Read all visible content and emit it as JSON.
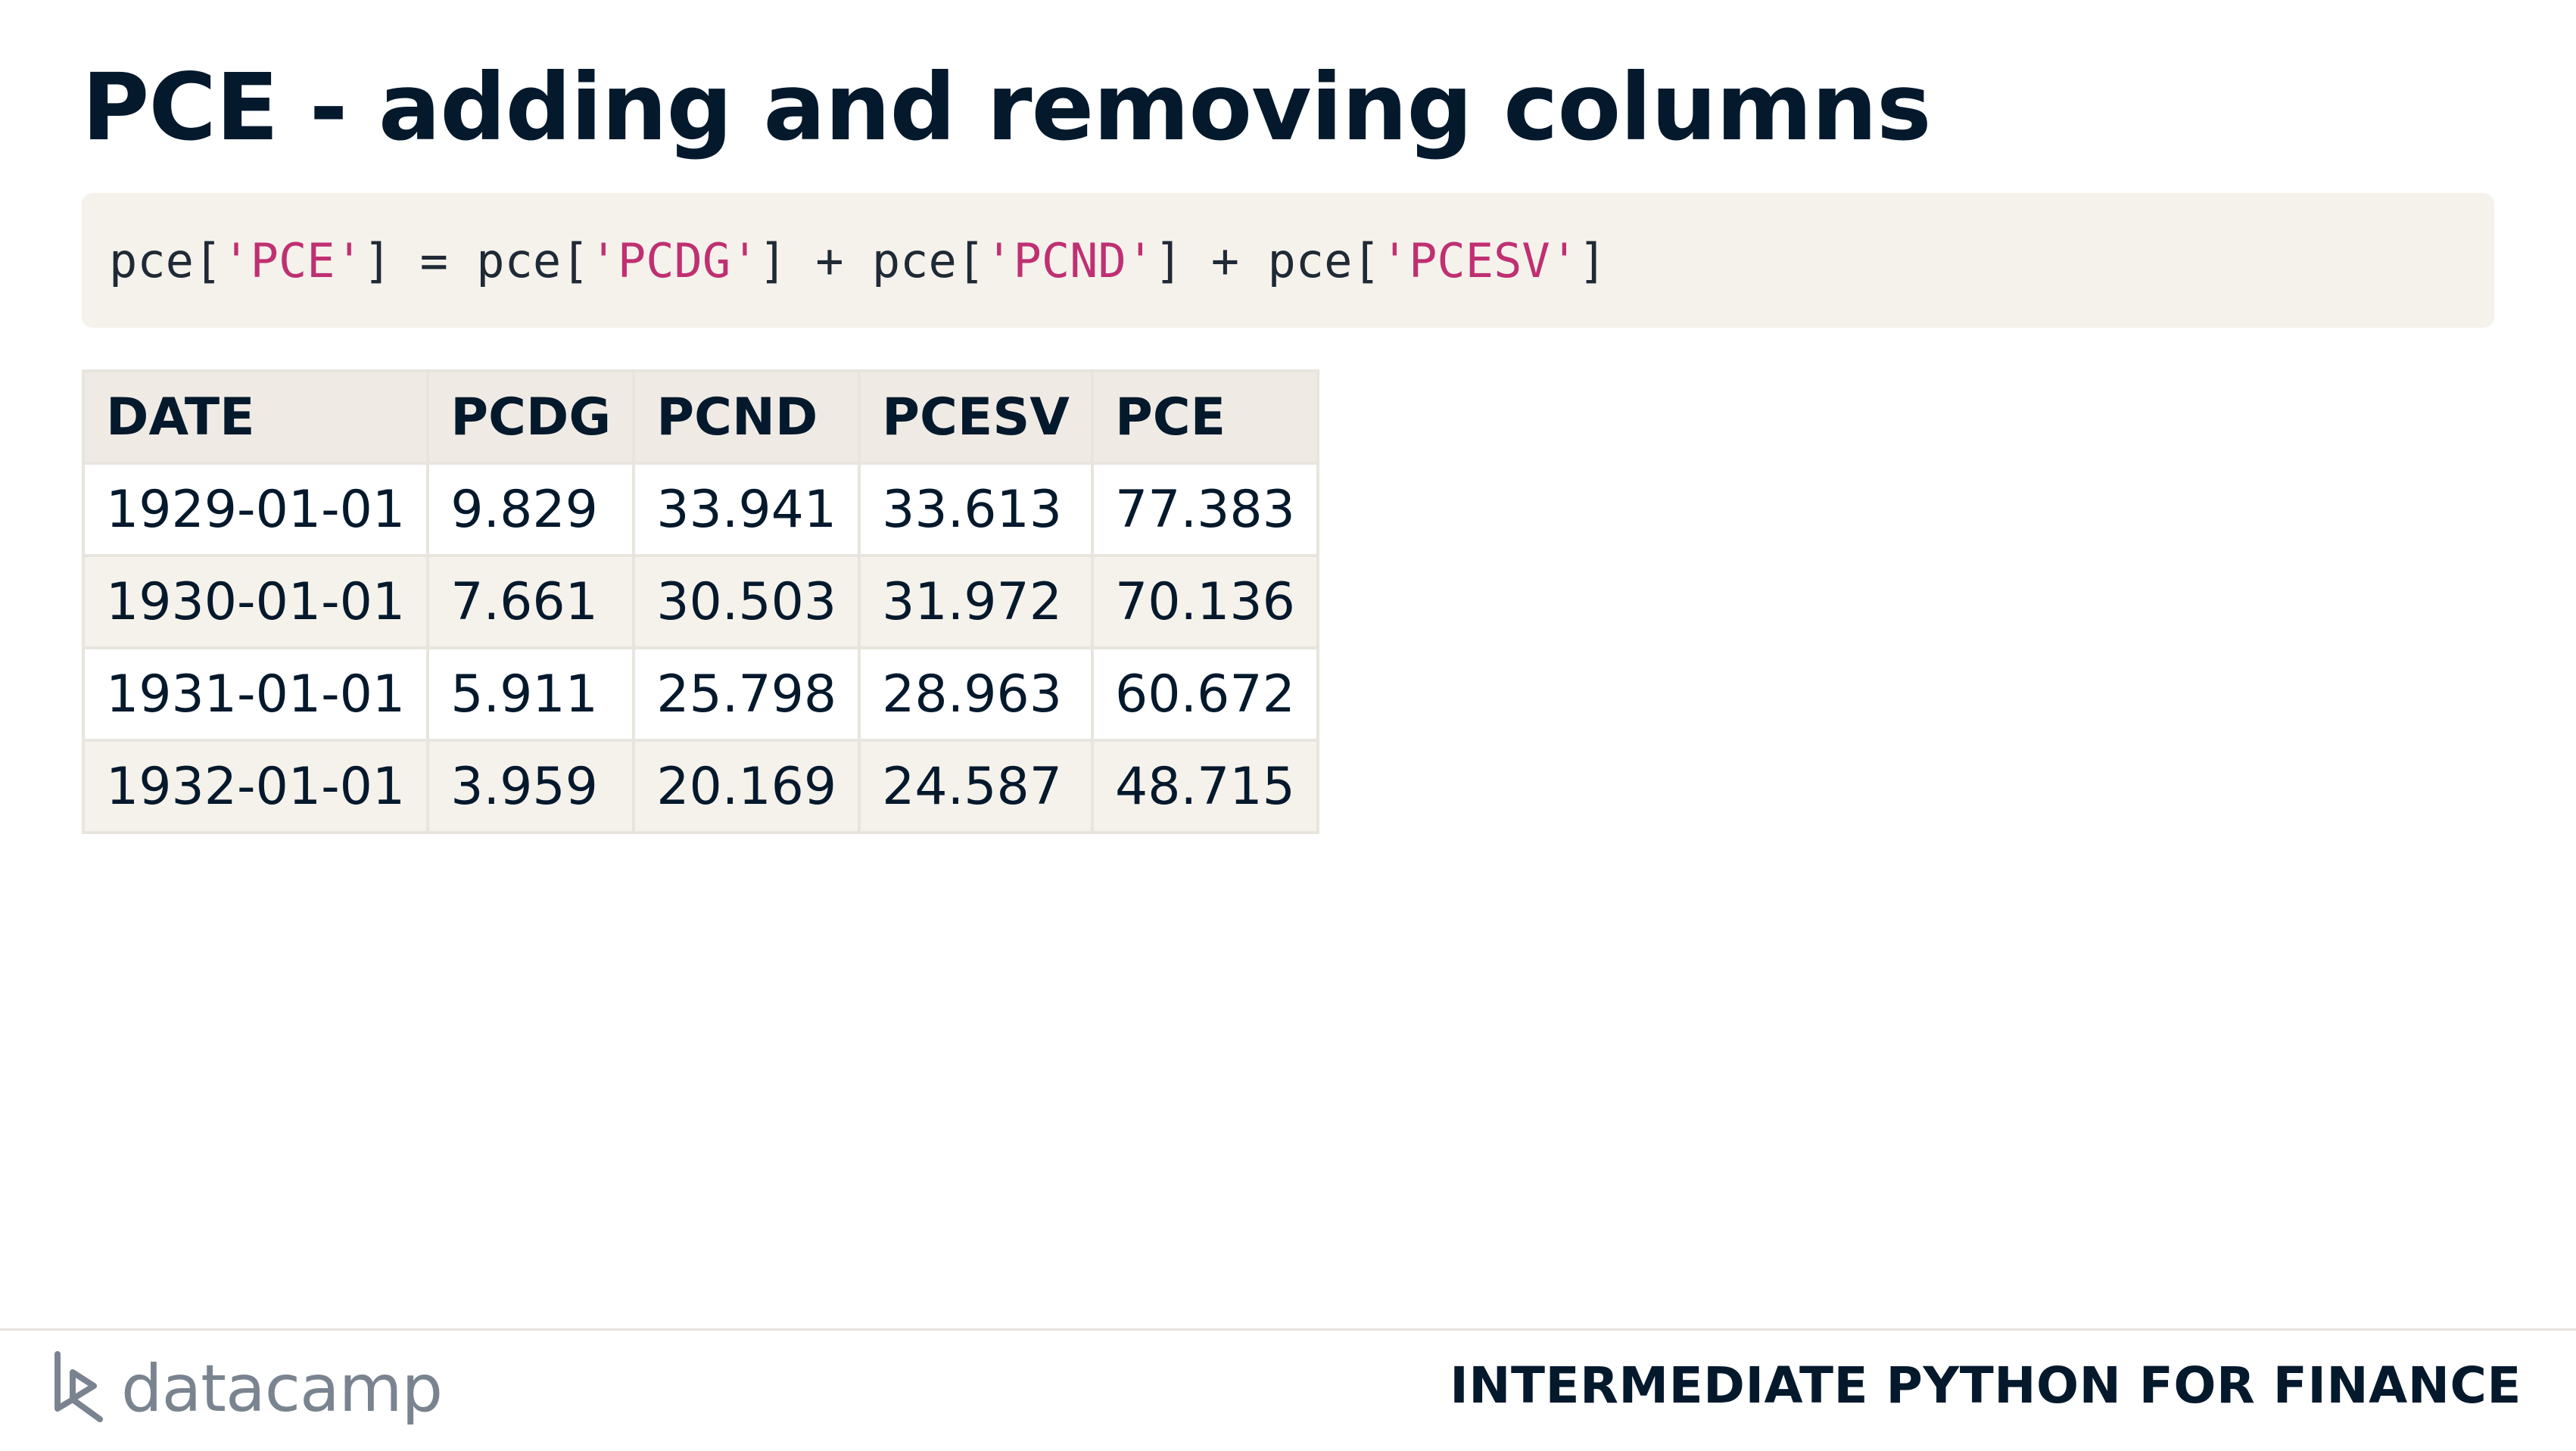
{
  "slide": {
    "title": "PCE - adding and removing columns"
  },
  "code": {
    "tokens": [
      {
        "text": "pce[",
        "type": "plain"
      },
      {
        "text": "'PCE'",
        "type": "str"
      },
      {
        "text": "] = pce[",
        "type": "plain"
      },
      {
        "text": "'PCDG'",
        "type": "str"
      },
      {
        "text": "] + pce[",
        "type": "plain"
      },
      {
        "text": "'PCND'",
        "type": "str"
      },
      {
        "text": "] + pce[",
        "type": "plain"
      },
      {
        "text": "'PCESV'",
        "type": "str"
      },
      {
        "text": "]",
        "type": "plain"
      }
    ],
    "string_color": "#bf3072",
    "background_color": "#f5f2eb"
  },
  "table": {
    "headers": [
      "DATE",
      "PCDG",
      "PCND",
      "PCESV",
      "PCE"
    ],
    "rows": [
      [
        "1929-01-01",
        "9.829",
        "33.941",
        "33.613",
        "77.383"
      ],
      [
        "1930-01-01",
        "7.661",
        "30.503",
        "31.972",
        "70.136"
      ],
      [
        "1931-01-01",
        "5.911",
        "25.798",
        "28.963",
        "60.672"
      ],
      [
        "1932-01-01",
        "3.959",
        "20.169",
        "24.587",
        "48.715"
      ]
    ]
  },
  "footer": {
    "logo_text": "datacamp",
    "logo_icon": "datacamp-logo-icon",
    "course_name": "INTERMEDIATE PYTHON FOR FINANCE"
  },
  "colors": {
    "text_dark": "#05192d",
    "logo_gray": "#7a8490"
  }
}
